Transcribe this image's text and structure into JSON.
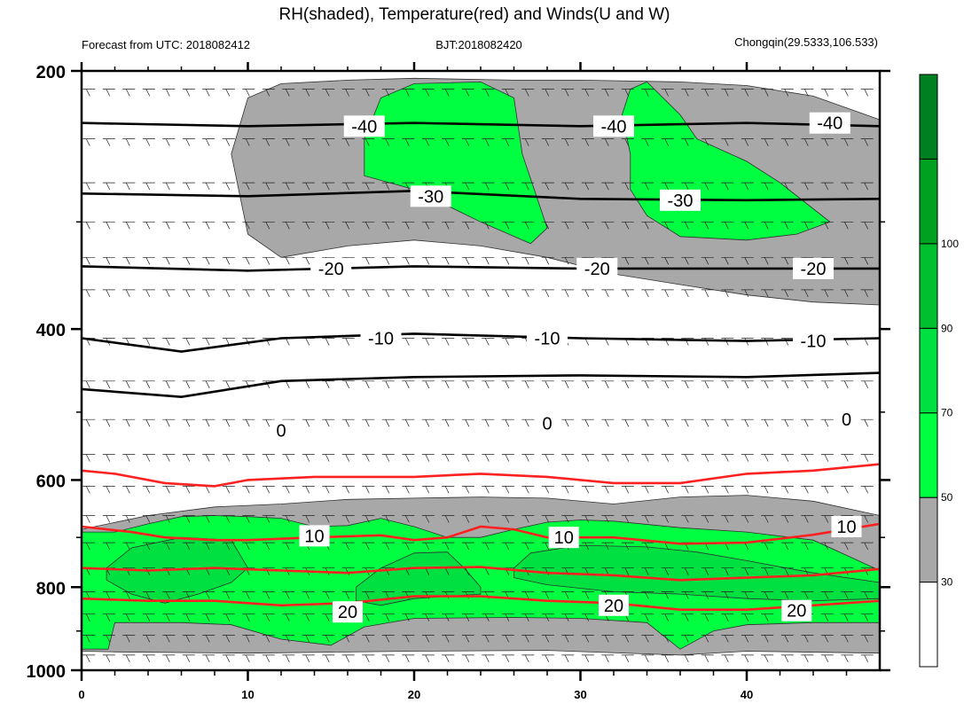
{
  "title": "RH(shaded), Temperature(red) and Winds(U and W)",
  "subtitle_left": "Forecast from UTC: 2018082412",
  "subtitle_center": "BJT:2018082420",
  "subtitle_right": "Chongqin(29.5333,106.533)",
  "chart_data": {
    "type": "heatmap",
    "title": "RH(shaded), Temperature(red) and Winds(U and W)",
    "xlabel": "",
    "ylabel": "",
    "xlim": [
      0,
      48
    ],
    "ylim": [
      1000,
      200
    ],
    "y_scale": "log",
    "x_ticks": [
      0,
      10,
      20,
      30,
      40
    ],
    "x_tick_labels": [
      "0",
      "10",
      "20",
      "30",
      "40"
    ],
    "y_ticks": [
      200,
      400,
      600,
      800,
      1000
    ],
    "y_tick_labels": [
      "200",
      "400",
      "600",
      "800",
      "1000"
    ],
    "colorbar": {
      "levels": [
        30,
        50,
        70,
        90,
        100
      ],
      "level_labels": [
        "30",
        "50",
        "70",
        "90",
        "100"
      ],
      "colors": [
        "#ffffff",
        "#a8a8a8",
        "#00ff40",
        "#00e040",
        "#00c030",
        "#00a020",
        "#008020"
      ]
    },
    "rh_regions": [
      {
        "name": "rh-lower-gray",
        "level": 30,
        "color": "#a8a8a8",
        "points": [
          [
            0,
            685
          ],
          [
            4,
            660
          ],
          [
            8,
            645
          ],
          [
            12,
            640
          ],
          [
            16,
            632
          ],
          [
            20,
            630
          ],
          [
            24,
            628
          ],
          [
            28,
            630
          ],
          [
            32,
            640
          ],
          [
            36,
            628
          ],
          [
            40,
            625
          ],
          [
            44,
            635
          ],
          [
            48,
            660
          ],
          [
            48,
            955
          ],
          [
            40,
            950
          ],
          [
            36,
            960
          ],
          [
            28,
            948
          ],
          [
            20,
            950
          ],
          [
            10,
            955
          ],
          [
            2,
            952
          ],
          [
            0,
            950
          ]
        ]
      },
      {
        "name": "rh-lower-green",
        "level": 50,
        "color": "#00ff40",
        "points": [
          [
            0,
            690
          ],
          [
            2,
            690
          ],
          [
            4,
            675
          ],
          [
            6,
            662
          ],
          [
            8,
            660
          ],
          [
            10,
            662
          ],
          [
            12,
            665
          ],
          [
            14,
            680
          ],
          [
            16,
            678
          ],
          [
            18,
            665
          ],
          [
            20,
            680
          ],
          [
            22,
            700
          ],
          [
            24,
            700
          ],
          [
            26,
            685
          ],
          [
            28,
            672
          ],
          [
            30,
            668
          ],
          [
            32,
            670
          ],
          [
            36,
            682
          ],
          [
            40,
            690
          ],
          [
            44,
            705
          ],
          [
            48,
            765
          ],
          [
            48,
            880
          ],
          [
            44,
            880
          ],
          [
            40,
            885
          ],
          [
            38,
            900
          ],
          [
            36,
            945
          ],
          [
            34,
            880
          ],
          [
            30,
            870
          ],
          [
            26,
            868
          ],
          [
            20,
            870
          ],
          [
            17,
            890
          ],
          [
            15,
            935
          ],
          [
            12,
            920
          ],
          [
            9,
            885
          ],
          [
            6,
            880
          ],
          [
            4,
            880
          ],
          [
            2,
            880
          ],
          [
            1.6,
            945
          ],
          [
            0,
            945
          ]
        ]
      },
      {
        "name": "rh-cell-left",
        "level": 70,
        "color": "#00e040",
        "points": [
          [
            1.5,
            760
          ],
          [
            3,
            720
          ],
          [
            6,
            700
          ],
          [
            9,
            705
          ],
          [
            10,
            760
          ],
          [
            9,
            790
          ],
          [
            7,
            815
          ],
          [
            5,
            835
          ],
          [
            3,
            815
          ],
          [
            1.5,
            785
          ]
        ]
      },
      {
        "name": "rh-cell-mid",
        "level": 70,
        "color": "#00e040",
        "points": [
          [
            16.5,
            800
          ],
          [
            18,
            760
          ],
          [
            20,
            730
          ],
          [
            22,
            728
          ],
          [
            23,
            760
          ],
          [
            24,
            800
          ],
          [
            24,
            815
          ],
          [
            22,
            820
          ],
          [
            20,
            825
          ],
          [
            18,
            840
          ],
          [
            16.5,
            830
          ]
        ]
      },
      {
        "name": "rh-cell-right",
        "level": 70,
        "color": "#00e040",
        "points": [
          [
            26,
            760
          ],
          [
            27,
            730
          ],
          [
            30,
            715
          ],
          [
            34,
            718
          ],
          [
            37,
            728
          ],
          [
            40,
            745
          ],
          [
            44,
            770
          ],
          [
            48,
            790
          ],
          [
            48,
            825
          ],
          [
            44,
            830
          ],
          [
            40,
            825
          ],
          [
            36,
            815
          ],
          [
            32,
            810
          ],
          [
            28,
            795
          ],
          [
            26,
            780
          ]
        ]
      },
      {
        "name": "rh-upper-gray",
        "level": 30,
        "color": "#a8a8a8",
        "points": [
          [
            9,
            250
          ],
          [
            10,
            215
          ],
          [
            12,
            207
          ],
          [
            16,
            205
          ],
          [
            20,
            204
          ],
          [
            26,
            205
          ],
          [
            30,
            205
          ],
          [
            36,
            206
          ],
          [
            40,
            208
          ],
          [
            44,
            214
          ],
          [
            48,
            228
          ],
          [
            48,
            375
          ],
          [
            44,
            372
          ],
          [
            40,
            365
          ],
          [
            36,
            355
          ],
          [
            32,
            345
          ],
          [
            28,
            330
          ],
          [
            24,
            320
          ],
          [
            20,
            315
          ],
          [
            16,
            320
          ],
          [
            12,
            330
          ],
          [
            10,
            310
          ]
        ]
      },
      {
        "name": "rh-upper-green-1",
        "level": 50,
        "color": "#00ff40",
        "points": [
          [
            17,
            240
          ],
          [
            18,
            215
          ],
          [
            20,
            207
          ],
          [
            24,
            206
          ],
          [
            26,
            215
          ],
          [
            26.5,
            250
          ],
          [
            28,
            305
          ],
          [
            27,
            318
          ],
          [
            24,
            300
          ],
          [
            20,
            275
          ],
          [
            17,
            265
          ]
        ]
      },
      {
        "name": "rh-upper-green-2",
        "level": 50,
        "color": "#00ff40",
        "points": [
          [
            32.5,
            225
          ],
          [
            33,
            210
          ],
          [
            34,
            206
          ],
          [
            36,
            225
          ],
          [
            37,
            240
          ],
          [
            40,
            255
          ],
          [
            42,
            270
          ],
          [
            45,
            300
          ],
          [
            43,
            310
          ],
          [
            40,
            315
          ],
          [
            36,
            312
          ],
          [
            34,
            295
          ],
          [
            33,
            275
          ],
          [
            33,
            250
          ]
        ]
      }
    ],
    "temperature_contours": [
      {
        "value": 10,
        "label": "10",
        "color": "#ff2020",
        "points": [
          [
            0,
            680
          ],
          [
            3,
            690
          ],
          [
            5,
            700
          ],
          [
            8,
            705
          ],
          [
            10,
            705
          ],
          [
            14,
            700
          ],
          [
            18,
            696
          ],
          [
            20,
            705
          ],
          [
            22,
            700
          ],
          [
            24,
            680
          ],
          [
            26,
            685
          ],
          [
            28,
            700
          ],
          [
            32,
            700
          ],
          [
            36,
            712
          ],
          [
            40,
            710
          ],
          [
            44,
            695
          ],
          [
            48,
            675
          ]
        ]
      },
      {
        "value": 20,
        "label": "20",
        "color": "#ff2020",
        "points": [
          [
            0,
            825
          ],
          [
            4,
            830
          ],
          [
            8,
            830
          ],
          [
            12,
            840
          ],
          [
            16,
            835
          ],
          [
            20,
            820
          ],
          [
            24,
            820
          ],
          [
            28,
            830
          ],
          [
            32,
            835
          ],
          [
            36,
            850
          ],
          [
            40,
            850
          ],
          [
            44,
            840
          ],
          [
            48,
            830
          ]
        ]
      },
      {
        "value": 5,
        "label": "",
        "color": "#ff2020",
        "points": [
          [
            0,
            585
          ],
          [
            2,
            590
          ],
          [
            5,
            605
          ],
          [
            8,
            610
          ],
          [
            10,
            600
          ],
          [
            14,
            595
          ],
          [
            20,
            595
          ],
          [
            24,
            590
          ],
          [
            28,
            595
          ],
          [
            32,
            605
          ],
          [
            36,
            605
          ],
          [
            40,
            590
          ],
          [
            44,
            585
          ],
          [
            48,
            575
          ]
        ]
      },
      {
        "value": 15,
        "label": "",
        "color": "#ff2020",
        "points": [
          [
            0,
            760
          ],
          [
            4,
            765
          ],
          [
            8,
            760
          ],
          [
            12,
            765
          ],
          [
            16,
            770
          ],
          [
            20,
            760
          ],
          [
            24,
            758
          ],
          [
            28,
            770
          ],
          [
            32,
            775
          ],
          [
            36,
            785
          ],
          [
            40,
            780
          ],
          [
            44,
            775
          ],
          [
            48,
            762
          ]
        ]
      }
    ],
    "temperature_labels": [
      {
        "text": "10",
        "x": 14,
        "p": 697
      },
      {
        "text": "10",
        "x": 29,
        "p": 700
      },
      {
        "text": "10",
        "x": 46,
        "p": 680
      },
      {
        "text": "20",
        "x": 16,
        "p": 855
      },
      {
        "text": "20",
        "x": 32,
        "p": 840
      },
      {
        "text": "20",
        "x": 43,
        "p": 852
      }
    ],
    "black_contours": [
      {
        "value": -40,
        "label": "-40",
        "points": [
          [
            0,
            230
          ],
          [
            10,
            232
          ],
          [
            20,
            230
          ],
          [
            30,
            232
          ],
          [
            40,
            230
          ],
          [
            48,
            232
          ]
        ]
      },
      {
        "value": -30,
        "label": "-30",
        "points": [
          [
            0,
            278
          ],
          [
            10,
            280
          ],
          [
            20,
            276
          ],
          [
            30,
            282
          ],
          [
            40,
            283
          ],
          [
            48,
            282
          ]
        ]
      },
      {
        "value": -20,
        "label": "-20",
        "points": [
          [
            0,
            338
          ],
          [
            10,
            342
          ],
          [
            20,
            338
          ],
          [
            30,
            340
          ],
          [
            40,
            340
          ],
          [
            48,
            340
          ]
        ]
      },
      {
        "value": -10,
        "label": "-10",
        "points": [
          [
            0,
            410
          ],
          [
            6,
            425
          ],
          [
            12,
            410
          ],
          [
            20,
            405
          ],
          [
            30,
            410
          ],
          [
            40,
            413
          ],
          [
            48,
            410
          ]
        ]
      },
      {
        "value": 0,
        "label": "0",
        "points": [
          [
            0,
            470
          ],
          [
            6,
            480
          ],
          [
            12,
            460
          ],
          [
            20,
            455
          ],
          [
            30,
            453
          ],
          [
            40,
            455
          ],
          [
            48,
            450
          ]
        ]
      }
    ],
    "black_labels": [
      {
        "text": "-40",
        "x": 17,
        "p": 232
      },
      {
        "text": "-40",
        "x": 32,
        "p": 232
      },
      {
        "text": "-40",
        "x": 45,
        "p": 230
      },
      {
        "text": "-30",
        "x": 21,
        "p": 280
      },
      {
        "text": "-30",
        "x": 36,
        "p": 283
      },
      {
        "text": "-20",
        "x": 15,
        "p": 340
      },
      {
        "text": "-20",
        "x": 31,
        "p": 340
      },
      {
        "text": "-20",
        "x": 44,
        "p": 340
      },
      {
        "text": "-10",
        "x": 18,
        "p": 410
      },
      {
        "text": "-10",
        "x": 28,
        "p": 410
      },
      {
        "text": "-10",
        "x": 44,
        "p": 413
      },
      {
        "text": "0",
        "x": 12,
        "p": 525
      },
      {
        "text": "0",
        "x": 28,
        "p": 515
      },
      {
        "text": "0",
        "x": 46,
        "p": 510
      }
    ],
    "wind_levels": [
      210,
      240,
      270,
      300,
      330,
      360,
      410,
      460,
      510,
      560,
      610,
      660,
      710,
      760,
      810,
      860,
      910,
      960
    ]
  }
}
